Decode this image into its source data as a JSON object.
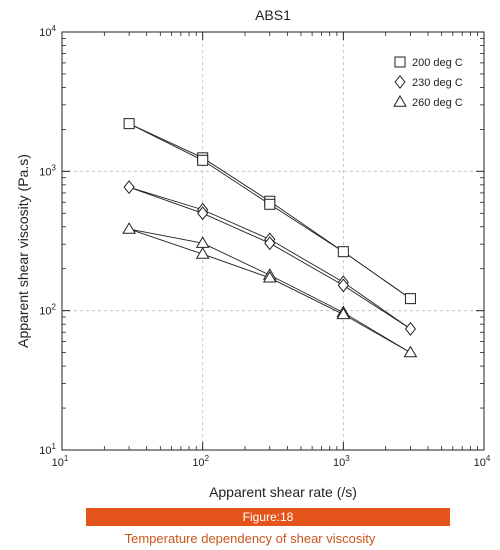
{
  "chart_data": {
    "type": "line",
    "title": "ABS1",
    "xlabel": "Apparent shear rate (/s)",
    "ylabel": "Apparent shear viscosity (Pa.s)",
    "xscale": "log",
    "yscale": "log",
    "xlim": [
      10,
      10000
    ],
    "ylim": [
      10,
      10000
    ],
    "grid": true,
    "legend_position": "top-right",
    "x_ticks": [
      "10",
      "100",
      "1000",
      "10000"
    ],
    "y_ticks": [
      "10",
      "100",
      "1000",
      "10000"
    ],
    "series": [
      {
        "name": "200 deg C",
        "marker": "square",
        "x": [
          30,
          100,
          300,
          1000,
          3000
        ],
        "y": [
          2200,
          1250,
          610,
          265,
          122
        ],
        "y_alt": [
          2200,
          1200,
          580,
          265,
          122
        ]
      },
      {
        "name": "230 deg C",
        "marker": "diamond",
        "x": [
          30,
          100,
          300,
          1000,
          3000
        ],
        "y": [
          770,
          530,
          325,
          160,
          74
        ],
        "y_alt": [
          770,
          500,
          305,
          152,
          74
        ]
      },
      {
        "name": "260 deg C",
        "marker": "triangle",
        "x": [
          30,
          100,
          300,
          1000,
          3000
        ],
        "y": [
          385,
          305,
          180,
          97,
          50
        ],
        "y_alt": [
          385,
          255,
          172,
          94,
          50
        ]
      }
    ]
  },
  "figure_label": "Figure:18",
  "caption": "Temperature dependency of shear viscosity",
  "colors": {
    "accent": "#E4541B",
    "caption_text": "#C8561C",
    "ink": "#222222",
    "grid": "#bbbbbb"
  }
}
